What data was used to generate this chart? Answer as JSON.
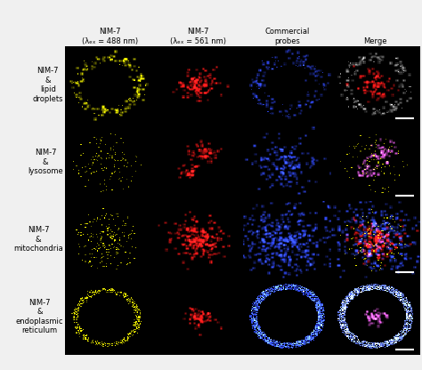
{
  "col_labels_line1": [
    "NIM-7",
    "NIM-7",
    "Commercial",
    "Merge"
  ],
  "col_labels_line2": [
    "(λₑₓ = 488 nm)",
    "(λₑₓ = 561 nm)",
    "probes",
    ""
  ],
  "row_labels": [
    "NIM-7\n&\nlipid\ndroplets",
    "NIM-7\n&\nlysosome",
    "NIM-7\n&\nmitochondria",
    "NIM-7\n&\nendoplasmic\nreticulum"
  ],
  "background_color": "#f0f0f0",
  "cell_bg": "#000000",
  "fig_width": 4.74,
  "fig_height": 4.16,
  "dpi": 100,
  "col_label_fontsize": 6.0,
  "row_label_fontsize": 6.0,
  "scalebar_color": "#ffffff",
  "img_res": 80
}
